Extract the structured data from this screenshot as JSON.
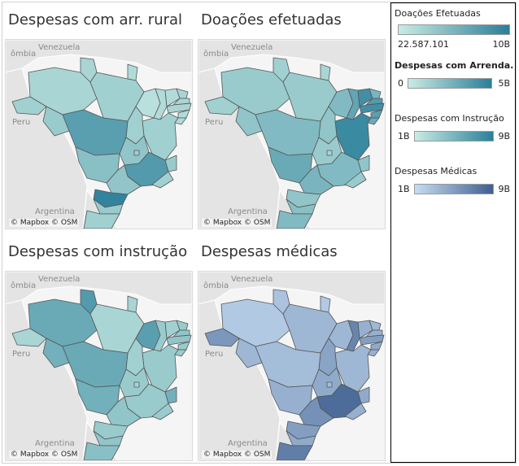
{
  "maps": [
    {
      "title": "Despesas com arr. rural",
      "credit": "© Mapbox © OSM",
      "palette": "teal"
    },
    {
      "title": "Doações efetuadas",
      "credit": "© Mapbox © OSM",
      "palette": "teal"
    },
    {
      "title": "Despesas com instrução",
      "credit": "© Mapbox © OSM",
      "palette": "teal"
    },
    {
      "title": "Despesas médicas",
      "credit": "© Mapbox © OSM",
      "palette": "blue"
    }
  ],
  "country_labels": {
    "venezuela": "Venezuela",
    "colombia": "ômbia",
    "peru": "Peru",
    "argentina": "Argentina"
  },
  "legends": [
    {
      "title": "Doações Efetuadas",
      "min": "22.587.101",
      "max": "10B",
      "color_low": "#c9ebe3",
      "color_high": "#2a7f9a"
    },
    {
      "title": "Despesas com Arrenda..",
      "min": "0",
      "max": "5B",
      "color_low": "#c9ebe3",
      "color_high": "#2a7f9a"
    },
    {
      "title": "Despesas com Instrução",
      "min": "1B",
      "max": "9B",
      "color_low": "#c9ebe3",
      "color_high": "#2a7f9a"
    },
    {
      "title": "Despesas Médicas",
      "min": "1B",
      "max": "9B",
      "color_low": "#c6dcf2",
      "color_high": "#3f5f8f"
    }
  ],
  "state_levels": [
    {
      "AC": 0.25,
      "AM": 0.2,
      "RR": 0.2,
      "AP": 0.15,
      "PA": 0.25,
      "MA": 0.1,
      "PI": 0.15,
      "CE": 0.15,
      "RN": 0.2,
      "PB": 0.2,
      "PE": 0.2,
      "AL": 0.15,
      "SE": 0.15,
      "BA": 0.25,
      "TO": 0.25,
      "RO": 0.3,
      "MT": 0.7,
      "GO": 0.35,
      "DF": 0.25,
      "MS": 0.4,
      "MG": 0.75,
      "ES": 0.3,
      "RJ": 0.25,
      "SP": 0.35,
      "PR": 0.95,
      "SC": 0.3,
      "RS": 0.25
    },
    {
      "AC": 0.25,
      "AM": 0.3,
      "RR": 0.25,
      "AP": 0.2,
      "PA": 0.3,
      "MA": 0.45,
      "PI": 0.65,
      "CE": 0.85,
      "RN": 0.5,
      "PB": 0.75,
      "PE": 0.85,
      "AL": 0.7,
      "SE": 0.6,
      "BA": 0.9,
      "TO": 0.35,
      "RO": 0.35,
      "MT": 0.45,
      "GO": 0.3,
      "DF": 0.2,
      "MS": 0.6,
      "MG": 0.45,
      "ES": 0.35,
      "RJ": 0.3,
      "SP": 0.5,
      "PR": 0.35,
      "SC": 0.4,
      "RS": 0.45
    },
    {
      "AC": 0.2,
      "AM": 0.6,
      "RR": 0.75,
      "AP": 0.2,
      "PA": 0.2,
      "MA": 0.7,
      "PI": 0.3,
      "CE": 0.25,
      "RN": 0.3,
      "PB": 0.35,
      "PE": 0.35,
      "AL": 0.3,
      "SE": 0.3,
      "BA": 0.3,
      "TO": 0.25,
      "RO": 0.55,
      "MT": 0.6,
      "GO": 0.3,
      "DF": 0.2,
      "MS": 0.55,
      "MG": 0.3,
      "ES": 0.55,
      "RJ": 0.3,
      "SP": 0.35,
      "PR": 0.3,
      "SC": 0.35,
      "RS": 0.4
    },
    {
      "AC": 0.55,
      "AM": 0.15,
      "RR": 0.2,
      "AP": 0.15,
      "PA": 0.3,
      "MA": 0.3,
      "PI": 0.7,
      "CE": 0.35,
      "RN": 0.3,
      "PB": 0.35,
      "PE": 0.5,
      "AL": 0.4,
      "SE": 0.35,
      "BA": 0.3,
      "TO": 0.45,
      "RO": 0.3,
      "MT": 0.25,
      "GO": 0.4,
      "DF": 0.25,
      "MS": 0.35,
      "MG": 0.9,
      "ES": 0.4,
      "RJ": 0.35,
      "SP": 0.6,
      "PR": 0.5,
      "SC": 0.4,
      "RS": 0.75
    }
  ]
}
